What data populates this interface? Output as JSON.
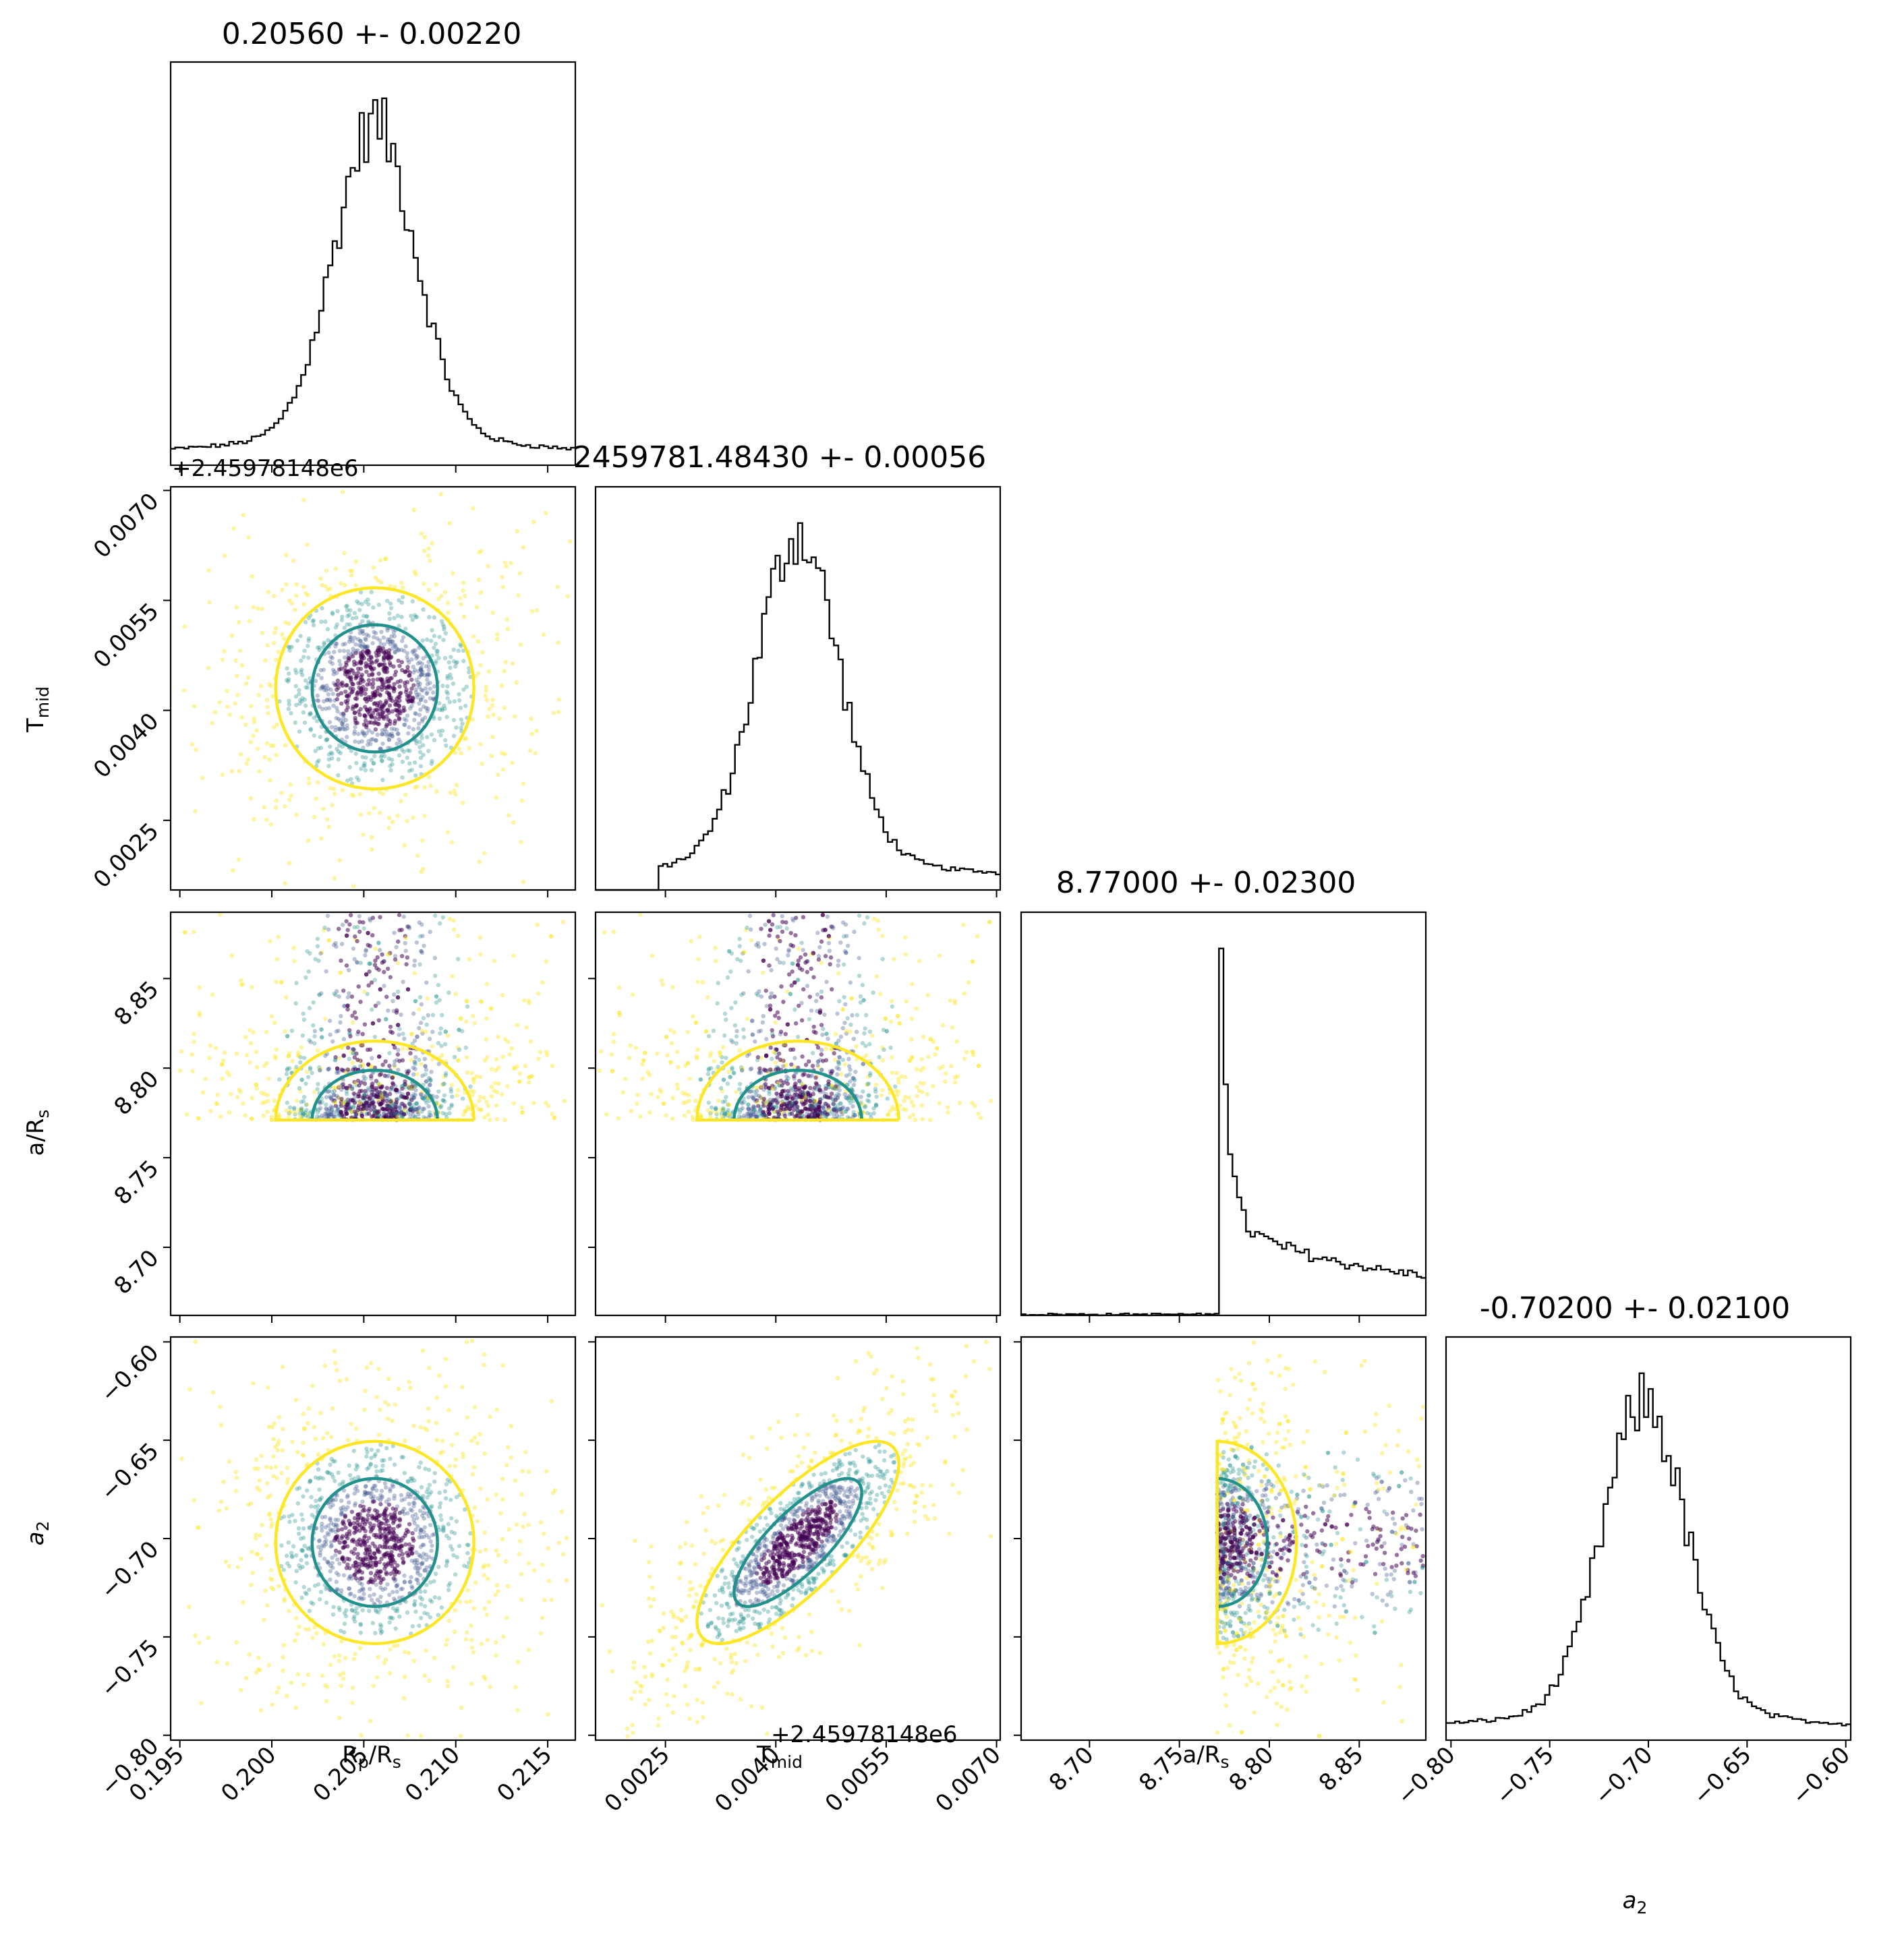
{
  "colors": {
    "outer_contour": "#fde725",
    "inner_contour": "#21918c",
    "core": "#440154",
    "mid": "#3b528b",
    "axis": "#000000"
  },
  "chart_data": {
    "type": "corner",
    "parameters": [
      {
        "key": "rp",
        "label": "Rp/Rs",
        "title": "0.20560 +- 0.00220",
        "range": [
          0.1945,
          0.2165
        ],
        "ticks": [
          0.195,
          0.2,
          0.205,
          0.21,
          0.215
        ],
        "tick_labels": [
          "0.195",
          "0.200",
          "0.205",
          "0.210",
          "0.215"
        ],
        "center": 0.2056,
        "sigma": 0.0022
      },
      {
        "key": "tmid",
        "label": "Tmid",
        "title": "2459781.48430 +- 0.00056",
        "range": [
          0.00155,
          0.00705
        ],
        "ticks": [
          0.0025,
          0.004,
          0.0055,
          0.007
        ],
        "tick_labels": [
          "0.0025",
          "0.0040",
          "0.0055",
          "0.0070"
        ],
        "offset_label": "+2.45978148e6",
        "center": 0.0043,
        "sigma": 0.00056
      },
      {
        "key": "ars",
        "label": "a/Rs",
        "title": "8.77000 +- 0.02300",
        "range": [
          8.662,
          8.887
        ],
        "ticks": [
          8.7,
          8.75,
          8.8,
          8.85
        ],
        "tick_labels": [
          "8.70",
          "8.75",
          "8.80",
          "8.85"
        ],
        "center": 8.77,
        "sigma": 0.023,
        "lower_bound": 8.771
      },
      {
        "key": "a2",
        "label": "a2",
        "title": "-0.70200 +- 0.02100",
        "range": [
          -0.8025,
          -0.5975
        ],
        "ticks": [
          -0.8,
          -0.75,
          -0.7,
          -0.65,
          -0.6
        ],
        "tick_labels": [
          "−0.80",
          "−0.75",
          "−0.70",
          "−0.65",
          "−0.60"
        ],
        "center": -0.702,
        "sigma": 0.021
      }
    ],
    "correlations": {
      "tmid_a2": 0.78
    },
    "levels": [
      "inner (1σ)",
      "outer (2σ)"
    ]
  }
}
